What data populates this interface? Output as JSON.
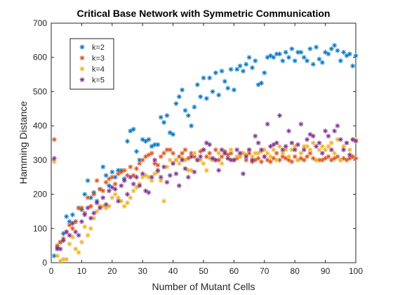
{
  "chart_data": {
    "type": "scatter",
    "title": "Critical Base Network with Symmetric Communication",
    "xlabel": "Number of Mutant Cells",
    "ylabel": "Hamming Distance",
    "xlim": [
      0,
      100
    ],
    "ylim": [
      0,
      700
    ],
    "xticks": [
      "0",
      "10",
      "20",
      "30",
      "40",
      "50",
      "60",
      "70",
      "80",
      "90",
      "100"
    ],
    "yticks": [
      "0",
      "100",
      "200",
      "300",
      "400",
      "500",
      "600",
      "700"
    ],
    "grid": false,
    "legend_position": "top-left",
    "marker": "*",
    "series": [
      {
        "name": "k=2",
        "color": "#0072BD",
        "x": [
          1,
          2,
          3,
          4,
          5,
          6,
          7,
          8,
          9,
          10,
          11,
          12,
          13,
          14,
          15,
          16,
          17,
          18,
          19,
          20,
          21,
          22,
          23,
          24,
          25,
          26,
          27,
          28,
          29,
          30,
          31,
          32,
          33,
          34,
          35,
          36,
          37,
          38,
          39,
          40,
          41,
          42,
          43,
          44,
          45,
          46,
          47,
          48,
          49,
          50,
          51,
          52,
          53,
          54,
          55,
          56,
          57,
          58,
          59,
          60,
          61,
          62,
          63,
          64,
          65,
          66,
          67,
          68,
          69,
          70,
          71,
          72,
          73,
          74,
          75,
          76,
          77,
          78,
          79,
          80,
          81,
          82,
          83,
          84,
          85,
          86,
          87,
          88,
          89,
          90,
          91,
          92,
          93,
          94,
          95,
          96,
          97,
          98,
          99,
          100
        ],
        "y": [
          20,
          45,
          60,
          85,
          135,
          120,
          140,
          120,
          160,
          155,
          200,
          240,
          190,
          205,
          180,
          215,
          280,
          255,
          225,
          265,
          250,
          270,
          270,
          245,
          355,
          385,
          390,
          325,
          300,
          360,
          355,
          360,
          340,
          345,
          345,
          425,
          410,
          430,
          380,
          375,
          465,
          485,
          505,
          445,
          430,
          400,
          455,
          520,
          485,
          540,
          480,
          540,
          500,
          555,
          490,
          560,
          530,
          510,
          565,
          505,
          565,
          575,
          560,
          580,
          600,
          570,
          590,
          520,
          525,
          555,
          600,
          605,
          600,
          610,
          610,
          590,
          615,
          600,
          625,
          590,
          615,
          615,
          600,
          590,
          625,
          580,
          630,
          595,
          585,
          615,
          610,
          625,
          635,
          620,
          590,
          615,
          605,
          610,
          575,
          605
        ]
      },
      {
        "name": "k=3",
        "color": "#D95319",
        "x": [
          1,
          2,
          3,
          4,
          5,
          6,
          7,
          8,
          9,
          10,
          11,
          12,
          13,
          14,
          15,
          16,
          17,
          18,
          19,
          20,
          21,
          22,
          23,
          24,
          25,
          26,
          27,
          28,
          29,
          30,
          31,
          32,
          33,
          34,
          35,
          36,
          37,
          38,
          39,
          40,
          41,
          42,
          43,
          44,
          45,
          46,
          47,
          48,
          49,
          50,
          51,
          52,
          53,
          54,
          55,
          56,
          57,
          58,
          59,
          60,
          61,
          62,
          63,
          64,
          65,
          66,
          67,
          68,
          69,
          70,
          71,
          72,
          73,
          74,
          75,
          76,
          77,
          78,
          79,
          80,
          81,
          82,
          83,
          84,
          85,
          86,
          87,
          88,
          89,
          90,
          91,
          92,
          93,
          94,
          95,
          96,
          97,
          98,
          99,
          100
        ],
        "y": [
          360,
          50,
          60,
          70,
          90,
          110,
          100,
          120,
          160,
          160,
          145,
          190,
          165,
          200,
          240,
          215,
          210,
          235,
          245,
          250,
          230,
          260,
          265,
          270,
          255,
          280,
          255,
          275,
          290,
          300,
          310,
          315,
          320,
          290,
          285,
          310,
          320,
          330,
          330,
          320,
          300,
          310,
          320,
          330,
          305,
          320,
          310,
          300,
          325,
          330,
          310,
          320,
          305,
          330,
          300,
          310,
          325,
          315,
          320,
          300,
          305,
          310,
          320,
          300,
          320,
          295,
          300,
          305,
          295,
          310,
          300,
          295,
          305,
          320,
          300,
          310,
          305,
          300,
          295,
          310,
          300,
          305,
          300,
          310,
          320,
          305,
          300,
          300,
          300,
          305,
          310,
          300,
          305,
          310,
          300,
          305,
          300,
          305,
          310,
          305
        ]
      },
      {
        "name": "k=4",
        "color": "#EDB120",
        "x": [
          1,
          2,
          3,
          4,
          5,
          6,
          7,
          8,
          9,
          10,
          11,
          12,
          13,
          14,
          15,
          16,
          17,
          18,
          19,
          20,
          21,
          22,
          23,
          24,
          25,
          26,
          27,
          28,
          29,
          30,
          31,
          32,
          33,
          34,
          35,
          36,
          37,
          38,
          39,
          40,
          41,
          42,
          43,
          44,
          45,
          46,
          47,
          48,
          49,
          50,
          51,
          52,
          53,
          54,
          55,
          56,
          57,
          58,
          59,
          60,
          61,
          62,
          63,
          64,
          65,
          66,
          67,
          68,
          69,
          70,
          71,
          72,
          73,
          74,
          75,
          76,
          77,
          78,
          79,
          80,
          81,
          82,
          83,
          84,
          85,
          86,
          87,
          88,
          89,
          90,
          91,
          92,
          93,
          94,
          95,
          96,
          97,
          98,
          99,
          100
        ],
        "y": [
          295,
          20,
          5,
          10,
          10,
          55,
          75,
          40,
          30,
          60,
          105,
          80,
          100,
          130,
          150,
          165,
          165,
          160,
          165,
          190,
          200,
          190,
          180,
          165,
          175,
          190,
          210,
          220,
          230,
          250,
          255,
          250,
          240,
          260,
          265,
          240,
          180,
          280,
          300,
          290,
          300,
          290,
          305,
          300,
          270,
          270,
          320,
          300,
          300,
          290,
          270,
          305,
          300,
          300,
          320,
          290,
          320,
          305,
          330,
          300,
          310,
          310,
          320,
          315,
          330,
          310,
          320,
          320,
          325,
          330,
          320,
          310,
          330,
          300,
          340,
          320,
          330,
          310,
          330,
          340,
          300,
          320,
          340,
          340,
          330,
          350,
          300,
          330,
          340,
          330,
          340,
          350,
          320,
          360,
          300,
          340,
          350,
          330,
          360,
          360
        ]
      },
      {
        "name": "k=5",
        "color": "#7E2F8E",
        "x": [
          1,
          2,
          3,
          4,
          5,
          6,
          7,
          8,
          9,
          10,
          11,
          12,
          13,
          14,
          15,
          16,
          17,
          18,
          19,
          20,
          21,
          22,
          23,
          24,
          25,
          26,
          27,
          28,
          29,
          30,
          31,
          32,
          33,
          34,
          35,
          36,
          37,
          38,
          39,
          40,
          41,
          42,
          43,
          44,
          45,
          46,
          47,
          48,
          49,
          50,
          51,
          52,
          53,
          54,
          55,
          56,
          57,
          58,
          59,
          60,
          61,
          62,
          63,
          64,
          65,
          66,
          67,
          68,
          69,
          70,
          71,
          72,
          73,
          74,
          75,
          76,
          77,
          78,
          79,
          80,
          81,
          82,
          83,
          84,
          85,
          86,
          87,
          88,
          89,
          90,
          91,
          92,
          93,
          94,
          95,
          96,
          97,
          98,
          99,
          100
        ],
        "y": [
          305,
          40,
          40,
          65,
          90,
          80,
          115,
          90,
          80,
          120,
          140,
          160,
          130,
          145,
          175,
          160,
          190,
          170,
          210,
          220,
          215,
          180,
          225,
          240,
          200,
          250,
          230,
          250,
          225,
          260,
          210,
          205,
          250,
          300,
          270,
          250,
          280,
          235,
          255,
          290,
          260,
          225,
          300,
          275,
          250,
          310,
          265,
          300,
          310,
          330,
          350,
          345,
          305,
          300,
          270,
          330,
          320,
          305,
          300,
          300,
          330,
          320,
          260,
          310,
          330,
          300,
          370,
          350,
          330,
          310,
          405,
          340,
          345,
          350,
          430,
          330,
          340,
          385,
          350,
          330,
          345,
          405,
          330,
          360,
          375,
          370,
          340,
          350,
          320,
          385,
          370,
          330,
          385,
          400,
          360,
          330,
          350,
          315,
          360,
          355
        ]
      }
    ]
  }
}
